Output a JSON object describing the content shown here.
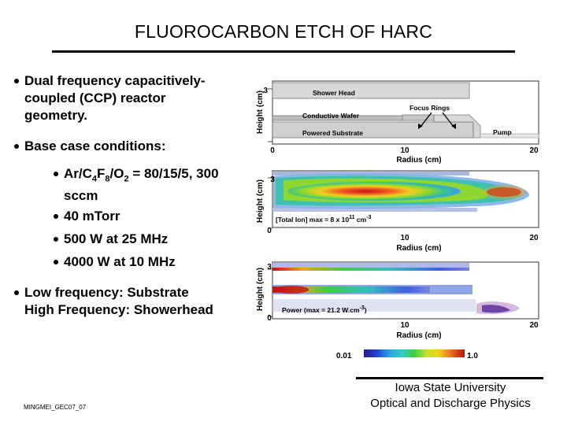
{
  "slide": {
    "title": "FLUOROCARBON ETCH OF HARC",
    "bullets": {
      "b1_line1": "Dual frequency capacitively-",
      "b1_line2": "coupled (CCP) reactor",
      "b1_line3": "geometry.",
      "b2": "Base case conditions:",
      "sub1_prefix": "Ar/C",
      "sub1_sub_a": "4",
      "sub1_mid": "F",
      "sub1_sub_b": "8",
      "sub1_mid2": "/O",
      "sub1_sub_c": "2",
      "sub1_suffix": " = 80/15/5, 300",
      "sub1_line2": "sccm",
      "sub2": "40 mTorr",
      "sub3": "500 W at 25 MHz",
      "sub4": "4000 W at 10 MHz",
      "b3_line1": "Low frequency: Substrate",
      "b3_line2": "High Frequency: Showerhead"
    },
    "figure": {
      "y_axis_label": "Height (cm)",
      "x_axis_label": "Radius (cm)",
      "y_ticks": [
        "3",
        "0"
      ],
      "x_ticks": [
        "0",
        "10",
        "20"
      ],
      "panel1": {
        "shower_head": "Shower Head",
        "conductive_wafer": "Conductive Wafer",
        "powered_substrate": "Powered Substrate",
        "focus_rings": "Focus Rings",
        "pump": "Pump"
      },
      "panel2": {
        "annotation_prefix": "[Total Ion] max = 8 x 10",
        "annotation_exp": "11",
        "annotation_unit": "cm",
        "annotation_unit_exp": "-3"
      },
      "panel3": {
        "annotation_prefix": "Power (max = 21.2 W.cm",
        "annotation_exp": "-3",
        "annotation_suffix": ")"
      },
      "colorbar": {
        "min": "0.01",
        "max": "1.0"
      }
    },
    "footer": {
      "code": "MINGMEI_GEC07_07",
      "org_line1": "Iowa State University",
      "org_line2": "Optical and Discharge Physics"
    }
  }
}
